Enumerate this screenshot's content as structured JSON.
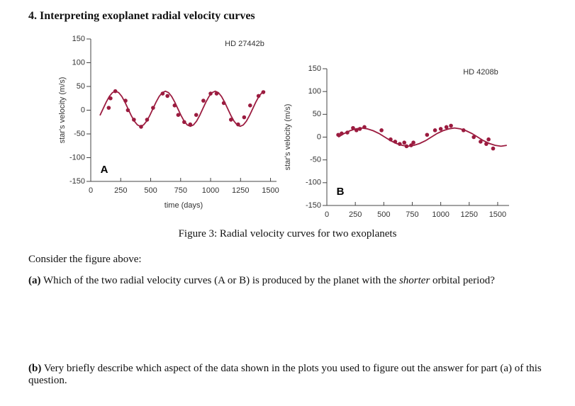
{
  "heading": "4. Interpreting exoplanet radial velocity curves",
  "chart_data": [
    {
      "type": "line",
      "title": "HD 27442b",
      "panel_label": "A",
      "ylabel": "star's velocity (m/s)",
      "xlabel": "time (days)",
      "xlim": [
        0,
        1550
      ],
      "xticks": [
        0,
        250,
        500,
        750,
        1000,
        1250,
        1500
      ],
      "ylim": [
        -150,
        150
      ],
      "yticks": [
        150,
        100,
        50,
        0,
        -50,
        -100,
        -150
      ],
      "color": "#9b1b3f",
      "curve": {
        "x": [
          77,
          103,
          129,
          155,
          181,
          207,
          233,
          259,
          285,
          311,
          337,
          363,
          389,
          415,
          441,
          467,
          493,
          519,
          545,
          571,
          597,
          623,
          649,
          675,
          701,
          727,
          753,
          779,
          805,
          831,
          857,
          883,
          909,
          935,
          961,
          987,
          1013,
          1039,
          1065,
          1091,
          1117,
          1143,
          1169,
          1195,
          1221,
          1247,
          1273,
          1299,
          1325,
          1351,
          1377,
          1403,
          1429,
          1455
        ],
        "values": [
          -11,
          3,
          17,
          29,
          37,
          40,
          37,
          29,
          17,
          3,
          -11,
          -23,
          -31,
          -34,
          -31,
          -23,
          -11,
          3,
          17,
          29,
          37,
          40,
          37,
          29,
          17,
          3,
          -11,
          -23,
          -31,
          -34,
          -31,
          -23,
          -11,
          3,
          17,
          29,
          37,
          40,
          37,
          29,
          17,
          3,
          -11,
          -23,
          -31,
          -34,
          -31,
          -23,
          -11,
          3,
          17,
          29,
          37,
          40
        ]
      },
      "points": {
        "x": [
          150,
          165,
          205,
          290,
          310,
          360,
          420,
          470,
          520,
          600,
          640,
          700,
          730,
          780,
          830,
          880,
          940,
          1000,
          1050,
          1110,
          1170,
          1230,
          1280,
          1330,
          1400,
          1440
        ],
        "values": [
          5,
          25,
          40,
          20,
          0,
          -20,
          -35,
          -20,
          5,
          35,
          30,
          10,
          -10,
          -25,
          -30,
          -10,
          20,
          35,
          35,
          15,
          -20,
          -30,
          -15,
          10,
          30,
          38
        ]
      }
    },
    {
      "type": "line",
      "title": "HD 4208b",
      "panel_label": "B",
      "ylabel": "star's velocity (m/s)",
      "xlim": [
        0,
        1600
      ],
      "xticks": [
        0,
        250,
        500,
        750,
        1000,
        1250,
        1500
      ],
      "ylim": [
        -150,
        150
      ],
      "yticks": [
        150,
        100,
        50,
        0,
        -50,
        -100,
        -150
      ],
      "color": "#9b1b3f",
      "curve": {
        "x": [
          101,
          152,
          203,
          254,
          305,
          356,
          407,
          458,
          509,
          560,
          611,
          662,
          713,
          764,
          815,
          866,
          917,
          968,
          1019,
          1070,
          1121,
          1172,
          1223,
          1274,
          1325,
          1376,
          1427,
          1478,
          1529,
          1580
        ],
        "values": [
          0,
          8,
          14,
          18,
          20,
          18,
          14,
          8,
          0,
          -8,
          -14,
          -18,
          -20,
          -18,
          -14,
          -8,
          0,
          8,
          14,
          18,
          20,
          18,
          14,
          8,
          0,
          -8,
          -14,
          -18,
          -20,
          -18
        ]
      },
      "points": {
        "x": [
          100,
          130,
          180,
          230,
          260,
          290,
          330,
          480,
          560,
          600,
          640,
          680,
          700,
          740,
          760,
          880,
          950,
          1000,
          1050,
          1090,
          1200,
          1290,
          1350,
          1400,
          1420,
          1460
        ],
        "values": [
          5,
          8,
          10,
          20,
          15,
          18,
          22,
          15,
          -5,
          -10,
          -15,
          -12,
          -20,
          -18,
          -12,
          5,
          15,
          18,
          22,
          25,
          15,
          0,
          -10,
          -15,
          -5,
          -25
        ]
      }
    }
  ],
  "caption": "Figure 3: Radial velocity curves for two exoplanets",
  "intro": "Consider the figure above:",
  "question_a": {
    "label": "(a)",
    "text_before": "Which of the two radial velocity curves (A or B) is produced by the planet with the",
    "emphasis": "shorter",
    "text_after": "orbital period?"
  },
  "question_b": {
    "label": "(b)",
    "text": "Very briefly describe which aspect of the data shown in the plots you used to figure out the answer for part (a) of this question."
  }
}
